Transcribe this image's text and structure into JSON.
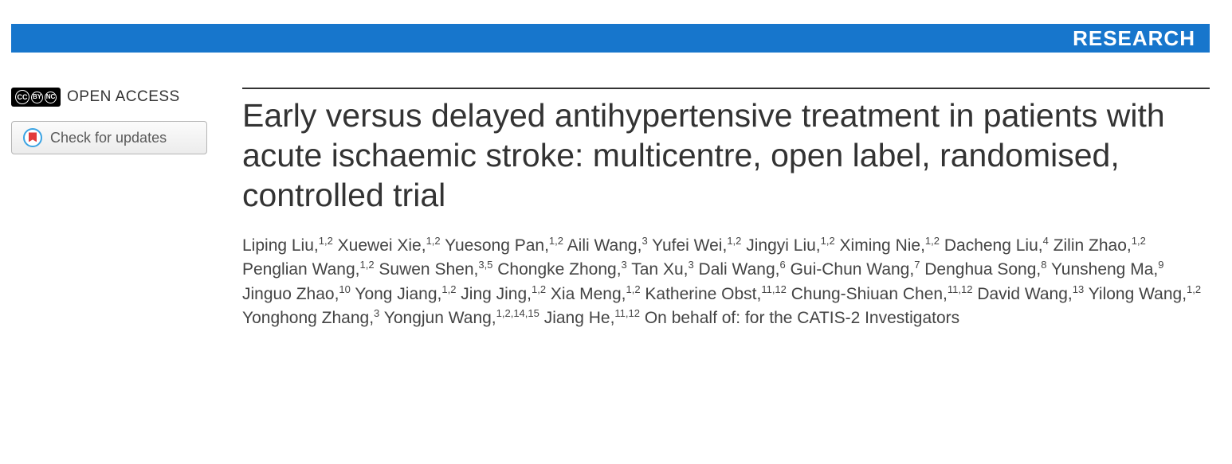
{
  "banner": {
    "label": "RESEARCH",
    "background_color": "#1776cc",
    "text_color": "#ffffff"
  },
  "sidebar": {
    "open_access_label": "OPEN ACCESS",
    "cc_badges": [
      "CC",
      "BY",
      "NC"
    ],
    "check_updates_label": "Check for updates"
  },
  "article": {
    "title": "Early versus delayed antihypertensive treatment in patients with acute ischaemic stroke: multicentre, open label, randomised, controlled trial",
    "authors": [
      {
        "name": "Liping Liu",
        "aff": "1,2"
      },
      {
        "name": "Xuewei Xie",
        "aff": "1,2"
      },
      {
        "name": "Yuesong Pan",
        "aff": "1,2"
      },
      {
        "name": "Aili Wang",
        "aff": "3"
      },
      {
        "name": "Yufei Wei",
        "aff": "1,2"
      },
      {
        "name": "Jingyi Liu",
        "aff": "1,2"
      },
      {
        "name": "Ximing Nie",
        "aff": "1,2"
      },
      {
        "name": "Dacheng Liu",
        "aff": "4"
      },
      {
        "name": "Zilin Zhao",
        "aff": "1,2"
      },
      {
        "name": "Penglian Wang",
        "aff": "1,2"
      },
      {
        "name": "Suwen Shen",
        "aff": "3,5"
      },
      {
        "name": "Chongke Zhong",
        "aff": "3"
      },
      {
        "name": "Tan Xu",
        "aff": "3"
      },
      {
        "name": "Dali Wang",
        "aff": "6"
      },
      {
        "name": "Gui-Chun Wang",
        "aff": "7"
      },
      {
        "name": "Denghua Song",
        "aff": "8"
      },
      {
        "name": "Yunsheng Ma",
        "aff": "9"
      },
      {
        "name": "Jinguo Zhao",
        "aff": "10"
      },
      {
        "name": "Yong Jiang",
        "aff": "1,2"
      },
      {
        "name": "Jing Jing",
        "aff": "1,2"
      },
      {
        "name": "Xia Meng",
        "aff": "1,2"
      },
      {
        "name": "Katherine Obst",
        "aff": "11,12"
      },
      {
        "name": "Chung-Shiuan Chen",
        "aff": "11,12"
      },
      {
        "name": "David Wang",
        "aff": "13"
      },
      {
        "name": "Yilong Wang",
        "aff": "1,2"
      },
      {
        "name": "Yonghong Zhang",
        "aff": "3"
      },
      {
        "name": "Yongjun Wang",
        "aff": "1,2,14,15"
      },
      {
        "name": "Jiang He",
        "aff": "11,12"
      }
    ],
    "author_suffix": "On behalf of: for the CATIS-2 Investigators",
    "title_fontsize": 41,
    "author_fontsize": 21,
    "text_color": "#333333"
  }
}
